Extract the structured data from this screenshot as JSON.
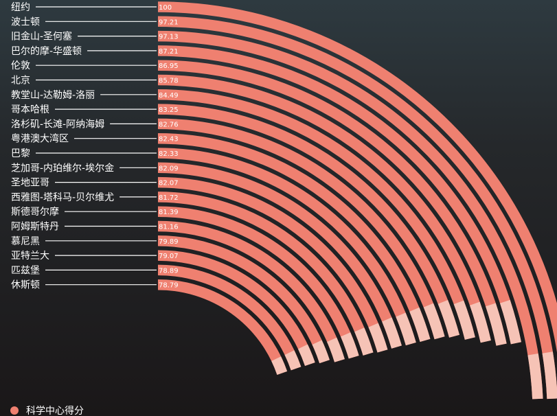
{
  "chart_data": {
    "type": "radial-bar",
    "legend": {
      "label": "科学中心得分",
      "color": "#ef8070"
    },
    "colors": {
      "arc": "#ef8070",
      "arc_light": "#f6c3b6",
      "line": "#ffffff",
      "bg_dark": "#1a1718"
    },
    "categories": [
      "纽约",
      "波士顿",
      "旧金山-圣何塞",
      "巴尔的摩-华盛顿",
      "伦敦",
      "北京",
      "教堂山-达勒姆-洛丽",
      "哥本哈根",
      "洛杉矶-长滩-阿纳海姆",
      "粤港澳大湾区",
      "巴黎",
      "芝加哥-内珀维尔-埃尔金",
      "圣地亚哥",
      "西雅图-塔科马-贝尔维尤",
      "斯德哥尔摩",
      "阿姆斯特丹",
      "慕尼黑",
      "亚特兰大",
      "匹兹堡",
      "休斯顿"
    ],
    "values": [
      100,
      97.21,
      97.13,
      87.21,
      86.95,
      85.78,
      84.49,
      83.25,
      82.76,
      82.43,
      82.33,
      82.09,
      82.07,
      81.72,
      81.39,
      81.16,
      79.89,
      79.07,
      78.89,
      78.79
    ],
    "value_labels": [
      "100",
      "97.21",
      "97.13",
      "87.21",
      "86.95",
      "85.78",
      "84.49",
      "83.25",
      "82.76",
      "82.43",
      "82.33",
      "82.09",
      "82.07",
      "81.72",
      "81.39",
      "81.16",
      "79.89",
      "79.07",
      "78.89",
      "78.79"
    ]
  }
}
